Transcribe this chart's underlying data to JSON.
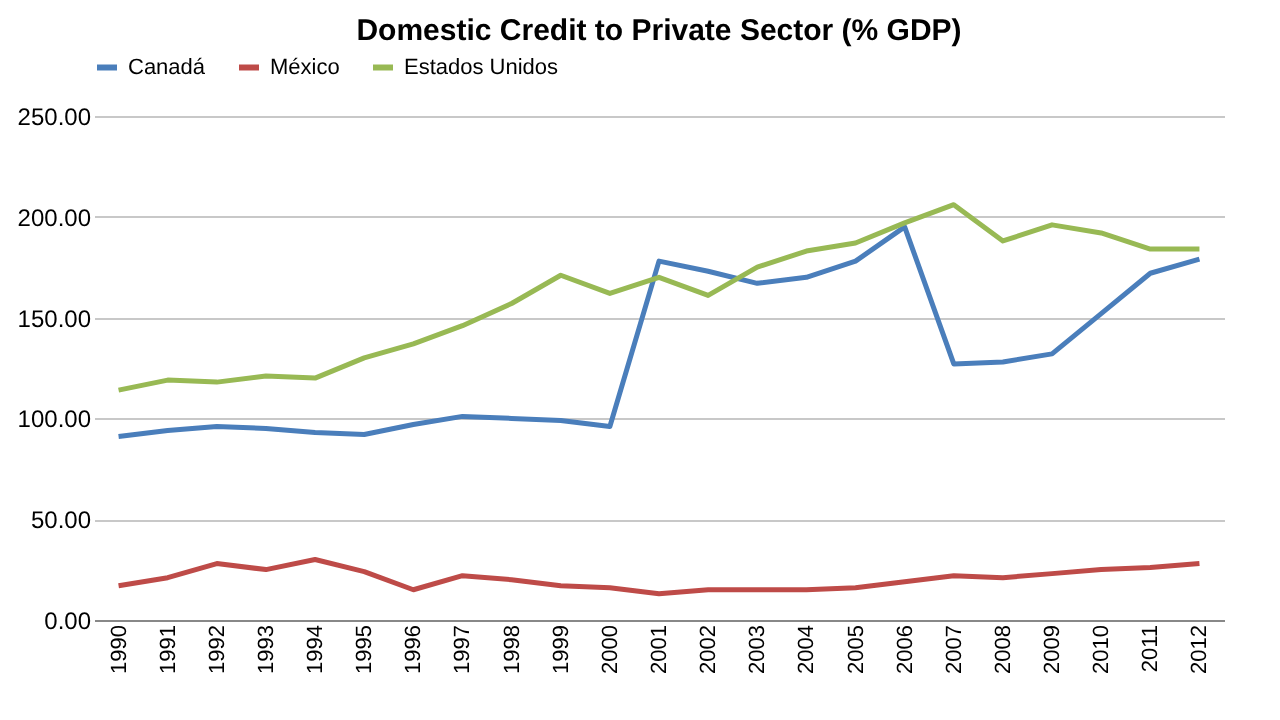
{
  "chart_data": {
    "type": "line",
    "title": "Domestic Credit to Private Sector (% GDP)",
    "categories": [
      "1990",
      "1991",
      "1992",
      "1993",
      "1994",
      "1995",
      "1996",
      "1997",
      "1998",
      "1999",
      "2000",
      "2001",
      "2002",
      "2003",
      "2004",
      "2005",
      "2006",
      "2007",
      "2008",
      "2009",
      "2010",
      "2011",
      "2012"
    ],
    "series": [
      {
        "name": "Canadá",
        "color": "#4a7ebb",
        "values": [
          91,
          94,
          96,
          95,
          93,
          92,
          97,
          101,
          100,
          99,
          96,
          178,
          173,
          167,
          170,
          178,
          195,
          127,
          128,
          132,
          152,
          172,
          179
        ]
      },
      {
        "name": "México",
        "color": "#be4b48",
        "values": [
          17,
          21,
          28,
          25,
          30,
          24,
          15,
          22,
          20,
          17,
          16,
          13,
          15,
          15,
          15,
          16,
          19,
          22,
          21,
          23,
          25,
          26,
          28
        ]
      },
      {
        "name": "Estados Unidos",
        "color": "#98b954",
        "values": [
          114,
          119,
          118,
          121,
          120,
          130,
          137,
          146,
          157,
          171,
          162,
          170,
          161,
          175,
          183,
          187,
          197,
          206,
          188,
          196,
          192,
          184,
          184
        ]
      }
    ],
    "ylim": [
      0,
      250
    ],
    "yticks": [
      {
        "value": 0,
        "label": "0.00"
      },
      {
        "value": 50,
        "label": "50.00"
      },
      {
        "value": 100,
        "label": "100.00"
      },
      {
        "value": 150,
        "label": "150.00"
      },
      {
        "value": 200,
        "label": "200.00"
      },
      {
        "value": 250,
        "label": "250.00"
      }
    ],
    "grid": "y",
    "legend": "top",
    "marker": "none",
    "line_style": "solid"
  }
}
